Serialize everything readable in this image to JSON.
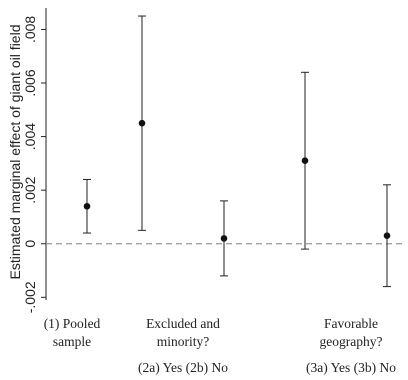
{
  "chart_data": {
    "type": "scatter",
    "subtype": "point-estimate-with-ci",
    "ylabel": "Estimated marginal effect of giant oil field",
    "ylim": [
      -0.0021,
      0.0088
    ],
    "yticks": [
      -0.002,
      0,
      0.002,
      0.004,
      0.006,
      0.008
    ],
    "ytick_labels": [
      "-.002",
      "0",
      ".002",
      ".004",
      ".006",
      ".008"
    ],
    "reference_line": {
      "y": 0,
      "style": "dashed",
      "color": "#9a9a9a"
    },
    "groups": [
      {
        "label_lines": [
          "(1) Pooled",
          "sample"
        ]
      },
      {
        "label_lines": [
          "Excluded and",
          "minority?"
        ]
      },
      {
        "label_lines": [
          "Favorable",
          "geography?"
        ]
      }
    ],
    "sublabels": [
      "(2a) Yes  (2b) No",
      "(3a) Yes  (3b) No"
    ],
    "estimates": [
      {
        "name": "(1)",
        "point": 0.0014,
        "lower": 0.0004,
        "upper": 0.0024
      },
      {
        "name": "(2a)",
        "point": 0.0045,
        "lower": 0.0005,
        "upper": 0.0085
      },
      {
        "name": "(2b)",
        "point": 0.0002,
        "lower": -0.0012,
        "upper": 0.0016
      },
      {
        "name": "(3a)",
        "point": 0.0031,
        "lower": -0.0002,
        "upper": 0.0064
      },
      {
        "name": "(3b)",
        "point": 0.0003,
        "lower": -0.0016,
        "upper": 0.0022
      }
    ],
    "grid": false,
    "legend": "none"
  }
}
